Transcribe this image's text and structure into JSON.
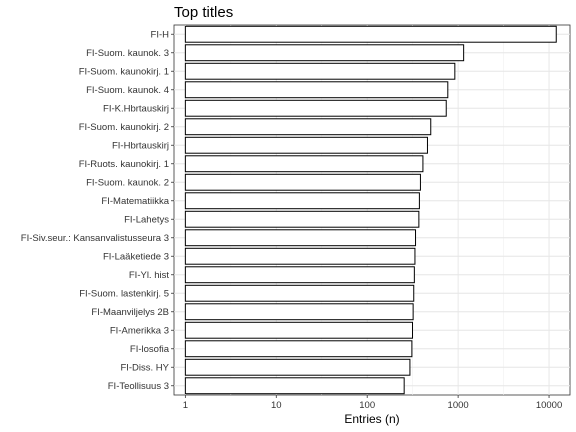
{
  "chart_data": {
    "type": "bar",
    "orientation": "horizontal",
    "title": "Top titles",
    "xlabel": "Entries (n)",
    "ylabel": "",
    "xscale": "log10",
    "xlim": [
      0.75,
      17000
    ],
    "xticks": [
      1,
      10,
      100,
      1000,
      10000
    ],
    "xtick_labels": [
      "1",
      "10",
      "100",
      "1000",
      "10000"
    ],
    "grid": true,
    "legend": "none",
    "categories": [
      "FI-H",
      "FI-Suom. kaunok. 3",
      "FI-Suom. kaunokirj. 1",
      "FI-Suom. kaunok. 4",
      "FI-K.Hbrtauskirj",
      "FI-Suom. kaunokirj. 2",
      "FI-Hbrtauskirj",
      "FI-Ruots. kaunokirj. 1",
      "FI-Suom. kaunok. 2",
      "FI-Matematiikka",
      "FI-Lahetys",
      "FI-Siv.seur.: Kansanvalistusseura 3",
      "FI-Laäketiede 3",
      "FI-Yl. hist",
      "FI-Suom. lastenkirj. 5",
      "FI-Maanviljelys 2B",
      "FI-Amerikka 3",
      "FI-losofia",
      "FI-Diss. HY",
      "FI-Teollisuus 3"
    ],
    "values": [
      12000,
      1150,
      920,
      770,
      740,
      500,
      460,
      410,
      385,
      375,
      370,
      340,
      335,
      330,
      325,
      320,
      315,
      310,
      295,
      255
    ],
    "bar_fill": "#ffffff",
    "bar_stroke": "#000000"
  }
}
